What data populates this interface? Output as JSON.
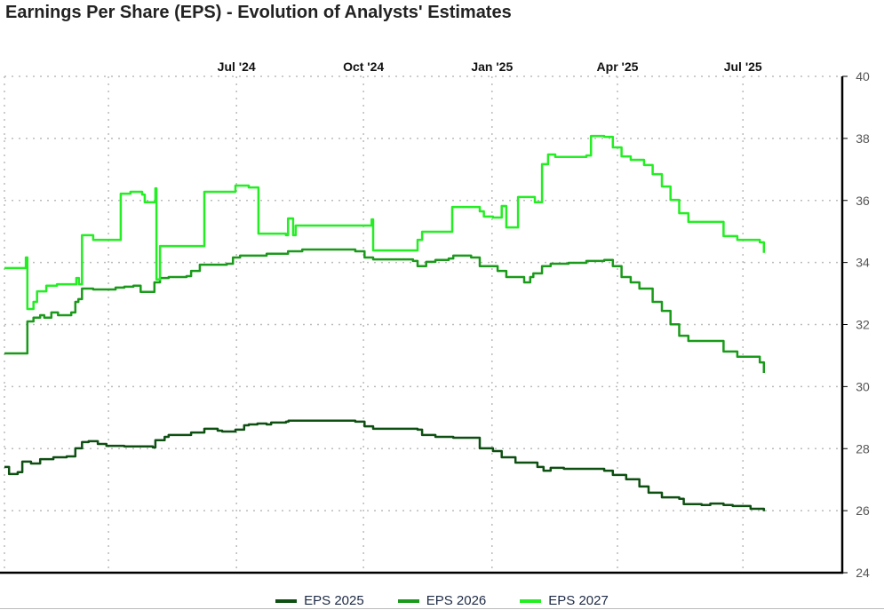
{
  "chart_data": {
    "type": "line",
    "title": "Earnings Per Share (EPS) - Evolution of Analysts' Estimates",
    "xlabel": "",
    "ylabel": "",
    "x_units": "decimal year",
    "xlim": [
      2024.044,
      2025.69
    ],
    "ylim": [
      24,
      40
    ],
    "y_ticks": [
      24,
      26,
      28,
      30,
      32,
      34,
      36,
      38,
      40
    ],
    "x_ticks": [
      {
        "x": 2024.248,
        "label": ""
      },
      {
        "x": 2024.499,
        "label": "Jul '24"
      },
      {
        "x": 2024.748,
        "label": "Oct '24"
      },
      {
        "x": 2025.0,
        "label": "Jan '25"
      },
      {
        "x": 2025.246,
        "label": "Apr '25"
      },
      {
        "x": 2025.492,
        "label": "Jul '25"
      }
    ],
    "grid": true,
    "y_axis_side": "right",
    "x_axis_side": "top",
    "legend_position": "bottom",
    "series": [
      {
        "name": "EPS 2025",
        "color": "#0e4f12",
        "points": [
          [
            2024.044,
            27.41
          ],
          [
            2024.053,
            27.18
          ],
          [
            2024.07,
            27.24
          ],
          [
            2024.079,
            27.58
          ],
          [
            2024.096,
            27.52
          ],
          [
            2024.114,
            27.66
          ],
          [
            2024.14,
            27.72
          ],
          [
            2024.166,
            27.75
          ],
          [
            2024.183,
            28.01
          ],
          [
            2024.196,
            28.21
          ],
          [
            2024.209,
            28.24
          ],
          [
            2024.227,
            28.15
          ],
          [
            2024.244,
            28.09
          ],
          [
            2024.279,
            28.07
          ],
          [
            2024.335,
            28.04
          ],
          [
            2024.34,
            28.27
          ],
          [
            2024.358,
            28.38
          ],
          [
            2024.366,
            28.44
          ],
          [
            2024.401,
            28.44
          ],
          [
            2024.41,
            28.52
          ],
          [
            2024.436,
            28.64
          ],
          [
            2024.462,
            28.58
          ],
          [
            2024.471,
            28.55
          ],
          [
            2024.497,
            28.61
          ],
          [
            2024.514,
            28.75
          ],
          [
            2024.523,
            28.78
          ],
          [
            2024.54,
            28.81
          ],
          [
            2024.558,
            28.78
          ],
          [
            2024.567,
            28.84
          ],
          [
            2024.596,
            28.87
          ],
          [
            2024.601,
            28.9
          ],
          [
            2024.732,
            28.87
          ],
          [
            2024.75,
            28.72
          ],
          [
            2024.767,
            28.64
          ],
          [
            2024.854,
            28.61
          ],
          [
            2024.863,
            28.44
          ],
          [
            2024.889,
            28.38
          ],
          [
            2024.924,
            28.35
          ],
          [
            2024.955,
            28.35
          ],
          [
            2024.976,
            28.01
          ],
          [
            2025.002,
            27.92
          ],
          [
            2025.019,
            27.72
          ],
          [
            2025.046,
            27.55
          ],
          [
            2025.075,
            27.55
          ],
          [
            2025.089,
            27.41
          ],
          [
            2025.101,
            27.29
          ],
          [
            2025.115,
            27.38
          ],
          [
            2025.141,
            27.35
          ],
          [
            2025.22,
            27.29
          ],
          [
            2025.237,
            27.15
          ],
          [
            2025.263,
            27.01
          ],
          [
            2025.289,
            26.78
          ],
          [
            2025.307,
            26.58
          ],
          [
            2025.333,
            26.43
          ],
          [
            2025.367,
            26.38
          ],
          [
            2025.376,
            26.21
          ],
          [
            2025.411,
            26.18
          ],
          [
            2025.428,
            26.23
          ],
          [
            2025.454,
            26.18
          ],
          [
            2025.472,
            26.15
          ],
          [
            2025.507,
            26.06
          ],
          [
            2025.533,
            25.98
          ]
        ]
      },
      {
        "name": "EPS 2026",
        "color": "#1a9a1a",
        "points": [
          [
            2024.044,
            31.07
          ],
          [
            2024.084,
            31.07
          ],
          [
            2024.089,
            32.1
          ],
          [
            2024.101,
            32.22
          ],
          [
            2024.114,
            32.3
          ],
          [
            2024.122,
            32.22
          ],
          [
            2024.136,
            32.39
          ],
          [
            2024.149,
            32.3
          ],
          [
            2024.175,
            32.39
          ],
          [
            2024.183,
            32.73
          ],
          [
            2024.189,
            32.82
          ],
          [
            2024.196,
            33.16
          ],
          [
            2024.218,
            33.13
          ],
          [
            2024.262,
            33.19
          ],
          [
            2024.279,
            33.22
          ],
          [
            2024.297,
            33.25
          ],
          [
            2024.311,
            33.05
          ],
          [
            2024.335,
            33.05
          ],
          [
            2024.338,
            33.36
          ],
          [
            2024.349,
            33.5
          ],
          [
            2024.366,
            33.53
          ],
          [
            2024.401,
            33.56
          ],
          [
            2024.41,
            33.73
          ],
          [
            2024.427,
            33.93
          ],
          [
            2024.48,
            33.96
          ],
          [
            2024.492,
            34.16
          ],
          [
            2024.506,
            34.22
          ],
          [
            2024.558,
            34.28
          ],
          [
            2024.596,
            34.28
          ],
          [
            2024.6,
            34.36
          ],
          [
            2024.628,
            34.42
          ],
          [
            2024.732,
            34.36
          ],
          [
            2024.75,
            34.16
          ],
          [
            2024.767,
            34.1
          ],
          [
            2024.845,
            34.05
          ],
          [
            2024.854,
            33.88
          ],
          [
            2024.871,
            34.02
          ],
          [
            2024.889,
            34.08
          ],
          [
            2024.915,
            34.13
          ],
          [
            2024.924,
            34.22
          ],
          [
            2024.959,
            34.16
          ],
          [
            2024.976,
            33.88
          ],
          [
            2025.011,
            33.73
          ],
          [
            2025.028,
            33.53
          ],
          [
            2025.063,
            33.36
          ],
          [
            2025.075,
            33.53
          ],
          [
            2025.081,
            33.65
          ],
          [
            2025.098,
            33.88
          ],
          [
            2025.115,
            33.96
          ],
          [
            2025.15,
            33.99
          ],
          [
            2025.185,
            34.05
          ],
          [
            2025.22,
            34.08
          ],
          [
            2025.237,
            33.88
          ],
          [
            2025.254,
            33.53
          ],
          [
            2025.272,
            33.36
          ],
          [
            2025.289,
            33.16
          ],
          [
            2025.315,
            32.73
          ],
          [
            2025.333,
            32.44
          ],
          [
            2025.35,
            32.01
          ],
          [
            2025.367,
            31.64
          ],
          [
            2025.385,
            31.47
          ],
          [
            2025.442,
            31.47
          ],
          [
            2025.454,
            31.13
          ],
          [
            2025.481,
            30.96
          ],
          [
            2025.525,
            30.78
          ],
          [
            2025.533,
            30.44
          ]
        ]
      },
      {
        "name": "EPS 2027",
        "color": "#22ee22",
        "points": [
          [
            2024.044,
            33.82
          ],
          [
            2024.084,
            33.82
          ],
          [
            2024.086,
            34.16
          ],
          [
            2024.089,
            32.5
          ],
          [
            2024.101,
            32.73
          ],
          [
            2024.108,
            33.07
          ],
          [
            2024.126,
            33.25
          ],
          [
            2024.147,
            33.3
          ],
          [
            2024.182,
            33.3
          ],
          [
            2024.185,
            33.5
          ],
          [
            2024.19,
            33.3
          ],
          [
            2024.196,
            34.88
          ],
          [
            2024.218,
            34.73
          ],
          [
            2024.27,
            34.73
          ],
          [
            2024.272,
            36.22
          ],
          [
            2024.291,
            36.28
          ],
          [
            2024.314,
            36.19
          ],
          [
            2024.319,
            35.94
          ],
          [
            2024.337,
            35.94
          ],
          [
            2024.34,
            36.39
          ],
          [
            2024.342,
            33.45
          ],
          [
            2024.349,
            34.53
          ],
          [
            2024.434,
            34.53
          ],
          [
            2024.436,
            36.28
          ],
          [
            2024.497,
            36.48
          ],
          [
            2024.523,
            36.42
          ],
          [
            2024.54,
            36.42
          ],
          [
            2024.542,
            34.93
          ],
          [
            2024.596,
            34.88
          ],
          [
            2024.6,
            35.42
          ],
          [
            2024.61,
            34.88
          ],
          [
            2024.615,
            35.19
          ],
          [
            2024.763,
            35.19
          ],
          [
            2024.764,
            35.39
          ],
          [
            2024.767,
            34.39
          ],
          [
            2024.845,
            34.39
          ],
          [
            2024.854,
            34.73
          ],
          [
            2024.863,
            34.99
          ],
          [
            2024.915,
            34.99
          ],
          [
            2024.922,
            35.79
          ],
          [
            2024.976,
            35.65
          ],
          [
            2024.984,
            35.48
          ],
          [
            2025.002,
            35.45
          ],
          [
            2025.019,
            35.82
          ],
          [
            2025.028,
            35.13
          ],
          [
            2025.046,
            35.13
          ],
          [
            2025.051,
            36.11
          ],
          [
            2025.081,
            36.11
          ],
          [
            2025.084,
            35.94
          ],
          [
            2025.093,
            35.94
          ],
          [
            2025.098,
            37.17
          ],
          [
            2025.11,
            37.48
          ],
          [
            2025.124,
            37.4
          ],
          [
            2025.185,
            37.45
          ],
          [
            2025.194,
            38.08
          ],
          [
            2025.22,
            38.05
          ],
          [
            2025.237,
            37.71
          ],
          [
            2025.254,
            37.42
          ],
          [
            2025.272,
            37.31
          ],
          [
            2025.298,
            37.14
          ],
          [
            2025.315,
            36.85
          ],
          [
            2025.333,
            36.45
          ],
          [
            2025.35,
            36.02
          ],
          [
            2025.367,
            35.59
          ],
          [
            2025.385,
            35.31
          ],
          [
            2025.442,
            35.31
          ],
          [
            2025.454,
            34.85
          ],
          [
            2025.481,
            34.73
          ],
          [
            2025.525,
            34.65
          ],
          [
            2025.533,
            34.31
          ]
        ]
      }
    ]
  }
}
